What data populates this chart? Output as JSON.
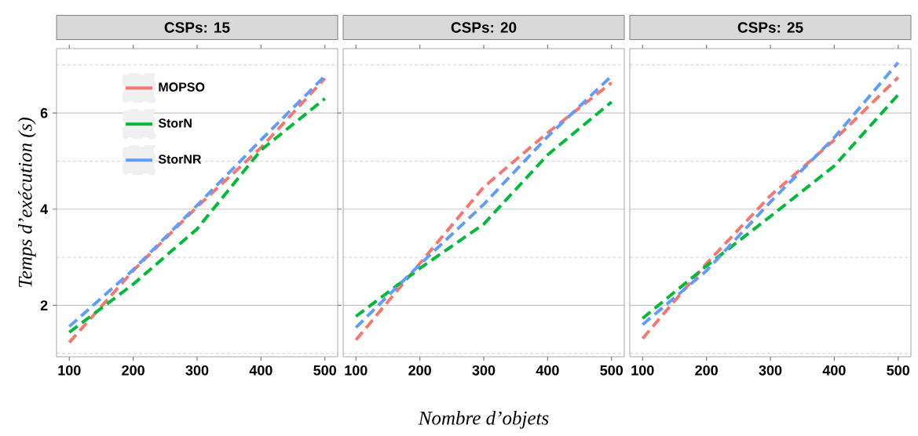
{
  "chart_data": [
    {
      "type": "line",
      "title": "CSPs: 15",
      "ylabel": "Temps d’exécution (s)",
      "x": [
        100,
        200,
        300,
        400,
        500
      ],
      "xlim": [
        80,
        520
      ],
      "xticks": [
        100,
        200,
        300,
        400,
        500
      ],
      "ylim": [
        0.93,
        7.34
      ],
      "yticks": [
        {
          "value": 1,
          "label": null
        },
        2,
        {
          "value": 3,
          "label": null
        },
        4,
        {
          "value": 5,
          "label": null
        },
        6,
        {
          "value": 7,
          "label": null
        }
      ],
      "grid": "y",
      "legend": "top left",
      "line_style": "dashed",
      "marker": "none",
      "series": [
        {
          "name": "MOPSO",
          "color": "#f8766d",
          "values": [
            1.23,
            2.72,
            4.05,
            5.28,
            6.72
          ]
        },
        {
          "name": "StorN",
          "color": "#00ba38",
          "values": [
            1.44,
            2.44,
            3.59,
            5.23,
            6.3
          ]
        },
        {
          "name": "StorNR",
          "color": "#619cff",
          "values": [
            1.56,
            2.74,
            4.08,
            5.44,
            6.77
          ]
        }
      ]
    },
    {
      "type": "line",
      "title": "CSPs: 20",
      "xlabel": "Nombre d’objets",
      "x": [
        100,
        200,
        300,
        400,
        500
      ],
      "xlim": [
        80,
        520
      ],
      "xticks": [
        100,
        200,
        300,
        400,
        500
      ],
      "ylim": [
        0.93,
        7.34
      ],
      "yticks": [
        {
          "value": 1,
          "label": null
        },
        2,
        {
          "value": 3,
          "label": null
        },
        4,
        {
          "value": 5,
          "label": null
        },
        6,
        {
          "value": 7,
          "label": null
        }
      ],
      "grid": "y",
      "tick_labels": "x",
      "line_style": "dashed",
      "marker": "none",
      "series": [
        {
          "color": "#f8766d",
          "values": [
            1.28,
            2.87,
            4.46,
            5.59,
            6.63
          ]
        },
        {
          "color": "#00ba38",
          "values": [
            1.77,
            2.77,
            3.69,
            5.13,
            6.23
          ]
        },
        {
          "color": "#619cff",
          "values": [
            1.54,
            2.85,
            4.1,
            5.51,
            6.77
          ]
        }
      ]
    },
    {
      "type": "line",
      "title": "CSPs: 25",
      "x": [
        100,
        200,
        300,
        400,
        500
      ],
      "xlim": [
        80,
        520
      ],
      "xticks": [
        100,
        200,
        300,
        400,
        500
      ],
      "ylim": [
        0.93,
        7.34
      ],
      "yticks": [
        {
          "value": 1,
          "label": null
        },
        2,
        {
          "value": 3,
          "label": null
        },
        4,
        {
          "value": 5,
          "label": null
        },
        6,
        {
          "value": 7,
          "label": null
        }
      ],
      "grid": "y",
      "tick_labels": "x",
      "line_style": "dashed",
      "marker": "none",
      "series": [
        {
          "color": "#f8766d",
          "values": [
            1.31,
            2.87,
            4.28,
            5.44,
            6.74
          ]
        },
        {
          "color": "#00ba38",
          "values": [
            1.73,
            2.82,
            3.85,
            4.9,
            6.38
          ]
        },
        {
          "color": "#619cff",
          "values": [
            1.6,
            2.72,
            4.15,
            5.49,
            7.05
          ]
        }
      ]
    }
  ]
}
